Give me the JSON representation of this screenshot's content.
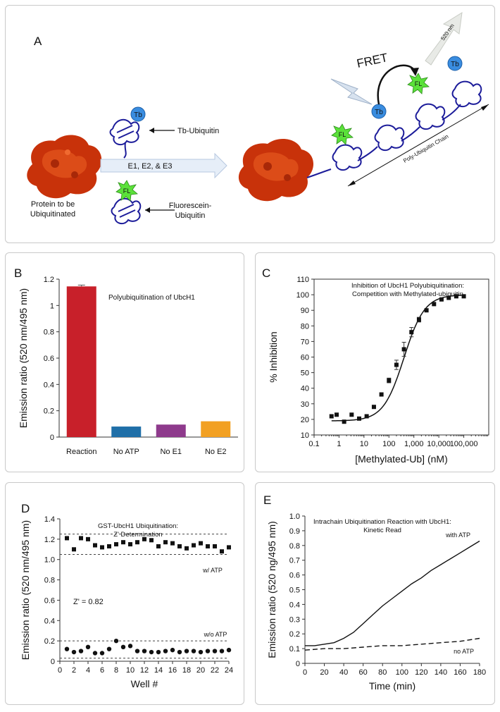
{
  "panelA": {
    "letter": "A",
    "protein_label_1": "Protein to be",
    "protein_label_2": "Ubiquitinated",
    "tb_ubiquitin_label": "Tb-Ubiquitin",
    "enzymes_label": "E1, E2, & E3",
    "fl_ubiquitin_label_1": "Fluorescein-",
    "fl_ubiquitin_label_2": "Ubiquitin",
    "tb_badge": "Tb",
    "fl_badge": "FL",
    "fret_label": "FRET",
    "emission_label": "520 nm",
    "chain_label": "Poly-Ubiquitin Chain"
  },
  "chart_data": [
    {
      "panel": "B",
      "type": "bar",
      "title": "Polyubiquitination of UbcH1",
      "xlabel": "",
      "ylabel": "Emission ratio (520 nm/495 nm)",
      "ylim": [
        0,
        1.2
      ],
      "yticks": [
        "0",
        "0.2",
        "0.4",
        "0.6",
        "0.8",
        "1",
        "1.2"
      ],
      "categories": [
        "Reaction",
        "No ATP",
        "No E1",
        "No E2"
      ],
      "values": [
        1.145,
        0.08,
        0.095,
        0.12
      ],
      "error": [
        0.01,
        0,
        0,
        0
      ],
      "colors": [
        "#c8202a",
        "#1f6fa8",
        "#8e3a8c",
        "#f2a022"
      ]
    },
    {
      "panel": "C",
      "type": "scatter",
      "title_lines": [
        "Inhibition of UbcH1 Polyubiquitination:",
        "Competition with Methylated-ubiquitin"
      ],
      "xlabel": "[Methylated-Ub] (nM)",
      "ylabel": "% Inhibition",
      "xscale": "log",
      "xlim": [
        0.1,
        1000000
      ],
      "ylim": [
        10,
        110
      ],
      "xticks": [
        "0.1",
        "1",
        "10",
        "100",
        "1,000",
        "10,000",
        "100,000"
      ],
      "yticks": [
        "10",
        "20",
        "30",
        "40",
        "50",
        "60",
        "70",
        "80",
        "90",
        "100",
        "110"
      ],
      "points": {
        "x": [
          0.5,
          0.8,
          1.6,
          3.2,
          6.4,
          12.8,
          25,
          50,
          100,
          200,
          400,
          800,
          1600,
          3200,
          6400,
          12800,
          25000,
          50000,
          100000
        ],
        "y": [
          22,
          23,
          18.5,
          23,
          20.5,
          22,
          28,
          36,
          45,
          55,
          65,
          76,
          84,
          90,
          94,
          97,
          98,
          99,
          99
        ],
        "error": [
          0,
          0,
          0,
          0,
          0,
          0,
          0,
          0,
          1.5,
          3,
          4.5,
          3,
          1.5,
          0,
          0,
          0,
          0,
          0,
          0
        ]
      },
      "fit": {
        "bottom": 19,
        "top": 100,
        "ec50": 400,
        "hill": 1.05
      }
    },
    {
      "panel": "D",
      "type": "scatter",
      "title_lines": [
        "GST-UbcH1 Ubiquitination:",
        "Z' Determination"
      ],
      "xlabel": "Well #",
      "ylabel": "Emission ratio (520 nm/495 nm)",
      "xlim": [
        0,
        24
      ],
      "ylim": [
        0,
        1.4
      ],
      "xticks": [
        "0",
        "2",
        "4",
        "6",
        "8",
        "10",
        "12",
        "14",
        "16",
        "18",
        "20",
        "22",
        "24"
      ],
      "yticks": [
        "0",
        "0.2",
        "0.4",
        "0.6",
        "0.8",
        "1.0",
        "1.2",
        "1.4"
      ],
      "x": [
        1,
        2,
        3,
        4,
        5,
        6,
        7,
        8,
        9,
        10,
        11,
        12,
        13,
        14,
        15,
        16,
        17,
        18,
        19,
        20,
        21,
        22,
        23,
        24
      ],
      "series": [
        {
          "name": "w/ ATP",
          "marker": "square",
          "values": [
            1.21,
            1.1,
            1.21,
            1.2,
            1.14,
            1.12,
            1.13,
            1.15,
            1.17,
            1.15,
            1.17,
            1.2,
            1.19,
            1.13,
            1.17,
            1.16,
            1.13,
            1.11,
            1.14,
            1.16,
            1.13,
            1.13,
            1.08,
            1.12
          ]
        },
        {
          "name": "w/o ATP",
          "marker": "circle",
          "values": [
            0.12,
            0.09,
            0.1,
            0.14,
            0.08,
            0.08,
            0.12,
            0.2,
            0.14,
            0.15,
            0.1,
            0.1,
            0.09,
            0.09,
            0.1,
            0.11,
            0.09,
            0.1,
            0.1,
            0.09,
            0.1,
            0.1,
            0.1,
            0.11
          ]
        }
      ],
      "reference_lines": [
        1.25,
        1.05,
        0.2,
        0.03
      ],
      "annotation": "Z' = 0.82"
    },
    {
      "panel": "E",
      "type": "line",
      "title_lines": [
        "Intrachain Ubiquitination Reaction with UbcH1:",
        "Kinetic Read"
      ],
      "xlabel": "Time (min)",
      "ylabel": "Emission ratio (520 ng/495 nm)",
      "xlim": [
        0,
        180
      ],
      "ylim": [
        0,
        1.0
      ],
      "xticks": [
        "0",
        "20",
        "40",
        "60",
        "80",
        "100",
        "120",
        "140",
        "160",
        "180"
      ],
      "yticks": [
        "0",
        "0.1",
        "0.2",
        "0.3",
        "0.4",
        "0.5",
        "0.6",
        "0.7",
        "0.8",
        "0.9",
        "1.0"
      ],
      "series": [
        {
          "name": "with ATP",
          "style": "solid",
          "x": [
            0,
            10,
            20,
            30,
            40,
            50,
            60,
            70,
            80,
            90,
            100,
            110,
            120,
            130,
            140,
            150,
            160,
            170,
            180
          ],
          "y": [
            0.12,
            0.12,
            0.13,
            0.14,
            0.17,
            0.21,
            0.27,
            0.33,
            0.39,
            0.44,
            0.49,
            0.54,
            0.58,
            0.63,
            0.67,
            0.71,
            0.75,
            0.79,
            0.83
          ]
        },
        {
          "name": "no ATP",
          "style": "dashed",
          "x": [
            0,
            20,
            40,
            60,
            80,
            100,
            120,
            140,
            160,
            180
          ],
          "y": [
            0.09,
            0.1,
            0.1,
            0.11,
            0.12,
            0.12,
            0.13,
            0.14,
            0.15,
            0.17
          ]
        }
      ]
    }
  ]
}
